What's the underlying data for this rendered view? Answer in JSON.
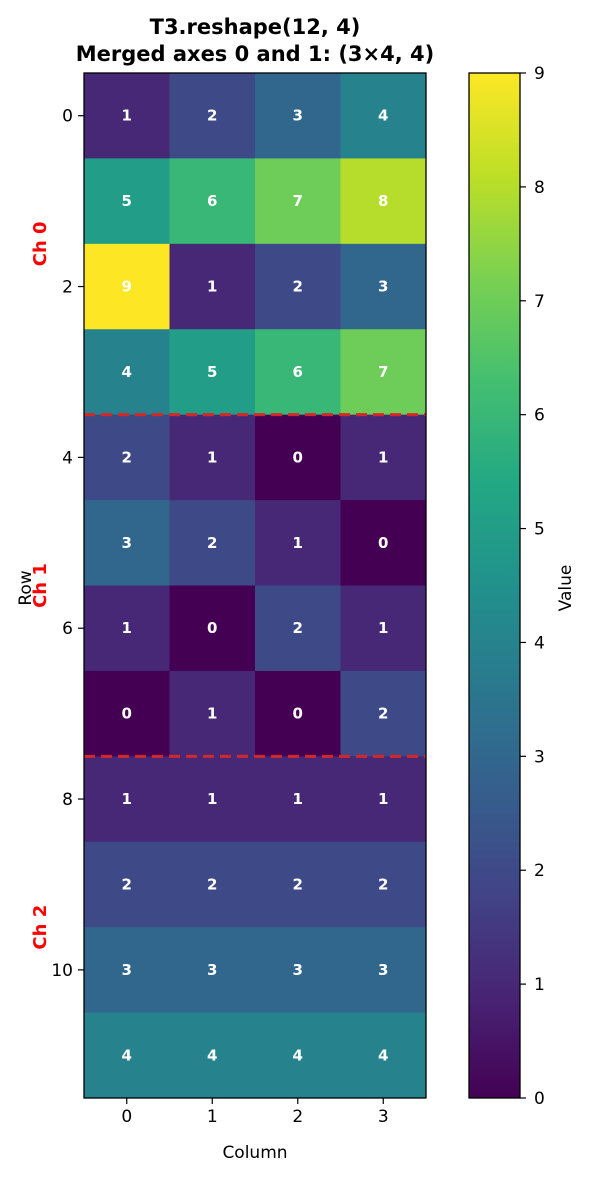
{
  "chart_data": {
    "type": "heatmap",
    "title": "T3.reshape(12, 4)",
    "subtitle": "Merged axes 0 and 1: (3×4, 4)",
    "xlabel": "Column",
    "ylabel": "Row",
    "x_ticks": [
      "0",
      "1",
      "2",
      "3"
    ],
    "y_ticks": [
      "0",
      "2",
      "4",
      "6",
      "8",
      "10"
    ],
    "y_tick_rows": [
      0,
      2,
      4,
      6,
      8,
      10
    ],
    "values": [
      [
        1,
        2,
        3,
        4
      ],
      [
        5,
        6,
        7,
        8
      ],
      [
        9,
        1,
        2,
        3
      ],
      [
        4,
        5,
        6,
        7
      ],
      [
        2,
        1,
        0,
        1
      ],
      [
        3,
        2,
        1,
        0
      ],
      [
        1,
        0,
        2,
        1
      ],
      [
        0,
        1,
        0,
        2
      ],
      [
        1,
        1,
        1,
        1
      ],
      [
        2,
        2,
        2,
        2
      ],
      [
        3,
        3,
        3,
        3
      ],
      [
        4,
        4,
        4,
        4
      ]
    ],
    "colormap": "viridis",
    "vmin": 0,
    "vmax": 9,
    "colorbar": {
      "label": "Value",
      "ticks": [
        "0",
        "1",
        "2",
        "3",
        "4",
        "5",
        "6",
        "7",
        "8",
        "9"
      ]
    },
    "group_labels": [
      {
        "text": "Ch 0",
        "center_row": 1.5
      },
      {
        "text": "Ch 1",
        "center_row": 5.5
      },
      {
        "text": "Ch 2",
        "center_row": 9.5
      }
    ],
    "group_label_color": "#ff0000",
    "separator_rows": [
      3.5,
      7.5
    ],
    "separator_color": "#d62728"
  }
}
